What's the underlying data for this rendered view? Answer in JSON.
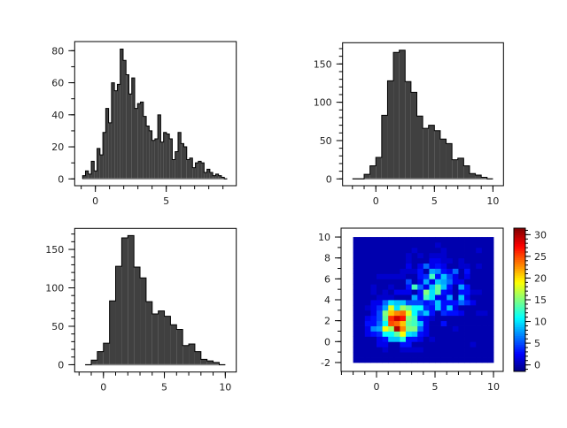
{
  "colors": {
    "bar_fill": "#404040",
    "bar_edge": "#000000",
    "baseline": "#8a8a8a",
    "colormap": "jet"
  },
  "chart_data": [
    {
      "type": "bar",
      "subtype": "histogram",
      "position": "top-left",
      "bin_range": [
        -0.9,
        9.3
      ],
      "values": [
        2,
        5,
        3,
        11,
        5,
        19,
        15,
        29,
        44,
        35,
        60,
        55,
        59,
        81,
        74,
        65,
        53,
        63,
        44,
        47,
        48,
        39,
        33,
        30,
        24,
        25,
        40,
        23,
        29,
        28,
        25,
        12,
        17,
        29,
        22,
        20,
        12,
        13,
        7,
        10,
        11,
        10,
        4,
        6,
        4,
        2,
        3,
        2,
        1,
        0
      ],
      "xlim": [
        -1.46,
        9.94
      ],
      "ylim": [
        -4.25,
        85.7
      ],
      "xticks": [
        0,
        5
      ],
      "xtick_labels": [
        "0",
        "5"
      ],
      "xminor": 1,
      "yticks": [
        0,
        20,
        40,
        60,
        80
      ],
      "ytick_labels": [
        "0",
        "20",
        "40",
        "60",
        "80"
      ],
      "yminor": 10
    },
    {
      "type": "bar",
      "subtype": "histogram",
      "position": "top-right",
      "bin_range": [
        -2,
        10
      ],
      "values": [
        0,
        0,
        6,
        17,
        28,
        83,
        128,
        165,
        168,
        127,
        113,
        82,
        66,
        70,
        63,
        52,
        46,
        25,
        27,
        17,
        7,
        5,
        2,
        0
      ],
      "xlim": [
        -2.84,
        10.9
      ],
      "ylim": [
        -8.9,
        177.7
      ],
      "xticks": [
        0,
        5,
        10
      ],
      "xtick_labels": [
        "0",
        "5",
        "10"
      ],
      "xminor": 1,
      "yticks": [
        0,
        50,
        100,
        150
      ],
      "ytick_labels": [
        "0",
        "50",
        "100",
        "150"
      ],
      "yminor": 10
    },
    {
      "type": "bar",
      "subtype": "histogram",
      "position": "bottom-left",
      "bin_range": [
        -1.5,
        10
      ],
      "values": [
        0,
        6,
        17,
        28,
        83,
        128,
        165,
        168,
        127,
        113,
        82,
        66,
        70,
        63,
        52,
        46,
        25,
        27,
        17,
        7,
        5,
        3,
        0
      ],
      "xlim": [
        -2.36,
        10.9
      ],
      "ylim": [
        -9.5,
        177.3
      ],
      "xticks": [
        0,
        5,
        10
      ],
      "xtick_labels": [
        "0",
        "5",
        "10"
      ],
      "xminor": 1,
      "yticks": [
        0,
        50,
        100,
        150
      ],
      "ytick_labels": [
        "0",
        "50",
        "100",
        "150"
      ],
      "yminor": 10
    },
    {
      "type": "heatmap",
      "subtype": "histogram2d",
      "position": "bottom-right",
      "x_range": [
        -2,
        10
      ],
      "y_range": [
        -2,
        10
      ],
      "xlim": [
        -3.03,
        10.83
      ],
      "ylim": [
        -2.85,
        10.85
      ],
      "xticks": [
        0,
        5,
        10
      ],
      "xtick_labels": [
        "0",
        "5",
        "10"
      ],
      "xminor": 1,
      "yticks": [
        -2,
        0,
        2,
        4,
        6,
        8,
        10
      ],
      "ytick_labels": [
        "-2",
        "0",
        "2",
        "4",
        "6",
        "8",
        "10"
      ],
      "yminor": 1,
      "colorbar": {
        "clim": [
          -1.5,
          31.5
        ],
        "ticks": [
          0,
          5,
          10,
          15,
          20,
          25,
          30
        ],
        "tick_labels": [
          "0",
          "5",
          "10",
          "15",
          "20",
          "25",
          "30"
        ],
        "minor": 1
      },
      "counts": [
        [
          0,
          0,
          0,
          0,
          0,
          0,
          0,
          0,
          0,
          0,
          0,
          0,
          0,
          0,
          0,
          0,
          0,
          0,
          0,
          0,
          0,
          0,
          0,
          0
        ],
        [
          0,
          0,
          0,
          0,
          0,
          0,
          0,
          0,
          0,
          0,
          0,
          0,
          0,
          0,
          0,
          0,
          0,
          0,
          0,
          0,
          0,
          0,
          0,
          0
        ],
        [
          0,
          0,
          0,
          0,
          0,
          1,
          0,
          0,
          1,
          1,
          1,
          1,
          0,
          0,
          0,
          0,
          0,
          0,
          0,
          0,
          0,
          0,
          0,
          0
        ],
        [
          0,
          0,
          0,
          0,
          2,
          2,
          0,
          0,
          3,
          3,
          0,
          0,
          0,
          0,
          0,
          0,
          0,
          0,
          0,
          0,
          1,
          0,
          0,
          0
        ],
        [
          0,
          0,
          0,
          0,
          2,
          3,
          9,
          9,
          12,
          3,
          3,
          2,
          0,
          1,
          0,
          0,
          0,
          0,
          0,
          0,
          0,
          0,
          0,
          0
        ],
        [
          0,
          0,
          2,
          3,
          4,
          11,
          11,
          14,
          19,
          10,
          9,
          3,
          2,
          0,
          0,
          0,
          0,
          0,
          0,
          0,
          0,
          0,
          0,
          0
        ],
        [
          0,
          0,
          2,
          7,
          8,
          19,
          16,
          30,
          23,
          15,
          15,
          6,
          2,
          0,
          0,
          0,
          0,
          1,
          0,
          0,
          0,
          0,
          0,
          0
        ],
        [
          0,
          0,
          3,
          3,
          6,
          11,
          25,
          24,
          21,
          14,
          13,
          9,
          2,
          0,
          0,
          3,
          0,
          0,
          0,
          0,
          0,
          0,
          0,
          0
        ],
        [
          0,
          0,
          2,
          3,
          5,
          14,
          26,
          29,
          27,
          15,
          13,
          3,
          2,
          1,
          0,
          0,
          0,
          0,
          0,
          0,
          0,
          0,
          0,
          0
        ],
        [
          0,
          0,
          0,
          2,
          5,
          15,
          21,
          23,
          24,
          18,
          11,
          6,
          9,
          3,
          0,
          4,
          3,
          3,
          2,
          0,
          0,
          1,
          1,
          0
        ],
        [
          0,
          0,
          1,
          2,
          4,
          8,
          18,
          10,
          16,
          14,
          11,
          11,
          4,
          3,
          9,
          3,
          9,
          2,
          0,
          0,
          0,
          0,
          0,
          0
        ],
        [
          0,
          0,
          0,
          2,
          2,
          6,
          10,
          9,
          9,
          5,
          5,
          5,
          3,
          4,
          9,
          3,
          3,
          3,
          6,
          4,
          2,
          0,
          0,
          0
        ],
        [
          0,
          0,
          0,
          0,
          1,
          1,
          1,
          0,
          0,
          0,
          8,
          3,
          13,
          10,
          2,
          2,
          8,
          0,
          9,
          2,
          0,
          0,
          0,
          0
        ],
        [
          0,
          0,
          0,
          1,
          0,
          1,
          0,
          2,
          2,
          2,
          0,
          3,
          15,
          10,
          14,
          3,
          2,
          0,
          3,
          3,
          1,
          1,
          0,
          0
        ],
        [
          0,
          0,
          0,
          1,
          0,
          0,
          1,
          0,
          0,
          3,
          13,
          6,
          2,
          9,
          14,
          9,
          3,
          0,
          8,
          3,
          0,
          0,
          0,
          0
        ],
        [
          0,
          0,
          0,
          0,
          0,
          0,
          0,
          0,
          0,
          5,
          0,
          2,
          8,
          2,
          9,
          8,
          6,
          2,
          2,
          0,
          0,
          0,
          0,
          0
        ],
        [
          0,
          0,
          0,
          0,
          1,
          1,
          1,
          1,
          1,
          0,
          0,
          3,
          4,
          13,
          3,
          9,
          5,
          2,
          0,
          2,
          0,
          0,
          0,
          0
        ],
        [
          0,
          0,
          0,
          0,
          0,
          0,
          0,
          0,
          1,
          1,
          1,
          3,
          0,
          8,
          7,
          3,
          2,
          6,
          0,
          3,
          0,
          0,
          0,
          0
        ],
        [
          0,
          0,
          0,
          0,
          0,
          0,
          0,
          0,
          0,
          2,
          0,
          2,
          6,
          2,
          3,
          2,
          0,
          0,
          1,
          1,
          0,
          1,
          0,
          0
        ],
        [
          0,
          0,
          0,
          0,
          0,
          0,
          0,
          0,
          0,
          1,
          0,
          0,
          0,
          2,
          2,
          1,
          1,
          0,
          1,
          0,
          0,
          0,
          0,
          0
        ],
        [
          0,
          0,
          0,
          0,
          0,
          0,
          0,
          0,
          0,
          1,
          0,
          1,
          0,
          1,
          1,
          1,
          0,
          0,
          0,
          0,
          0,
          0,
          0,
          0
        ],
        [
          0,
          0,
          0,
          0,
          0,
          0,
          0,
          0,
          0,
          0,
          1,
          0,
          0,
          0,
          0,
          1,
          0,
          0,
          0,
          0,
          0,
          1,
          0,
          0
        ],
        [
          0,
          0,
          0,
          0,
          0,
          0,
          0,
          0,
          0,
          0,
          0,
          0,
          0,
          0,
          1,
          0,
          0,
          0,
          0,
          0,
          0,
          0,
          0,
          0
        ],
        [
          0,
          0,
          0,
          0,
          0,
          0,
          0,
          0,
          0,
          0,
          0,
          0,
          0,
          0,
          0,
          0,
          0,
          0,
          0,
          0,
          0,
          0,
          0,
          0
        ]
      ]
    }
  ]
}
